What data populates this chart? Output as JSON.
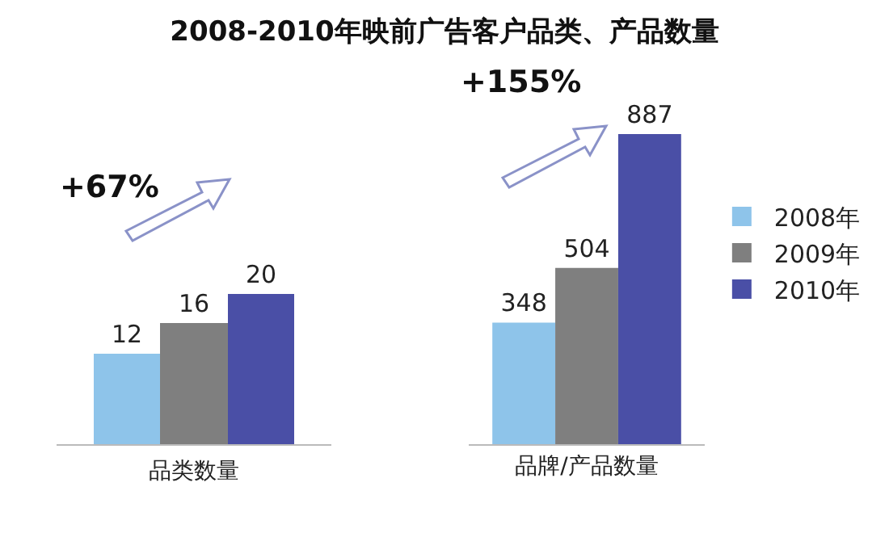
{
  "chart_data": [
    {
      "type": "bar",
      "title": "2008-2010年映前广告客户品类、产品数量",
      "xlabel": "品类数量",
      "categories": [
        null,
        null,
        null
      ],
      "values": [
        12,
        16,
        20
      ],
      "colors": [
        "#8ec4ea",
        "#7f7f7f",
        "#4a4fa6"
      ],
      "data_labels": true,
      "legend": false,
      "annotations": [
        "+67%"
      ]
    },
    {
      "type": "bar",
      "categories": [
        "品牌/产品数量"
      ],
      "series": [
        {
          "name": "2008年",
          "color": "#8ec4ea",
          "values": [
            348
          ]
        },
        {
          "name": "2009年",
          "color": "#7f7f7f",
          "values": [
            504
          ]
        },
        {
          "name": "2010年",
          "color": "#4a4fa6",
          "values": [
            887
          ]
        }
      ],
      "data_labels": true,
      "legend": "right",
      "annotations": [
        "+155%"
      ]
    }
  ]
}
